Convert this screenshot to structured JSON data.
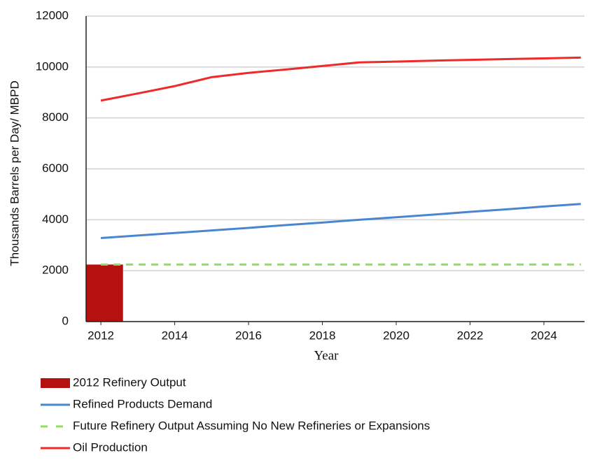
{
  "chart_data": {
    "type": "line",
    "xlabel": "Year",
    "ylabel": "Thousands Barrels per Day/ MBPD",
    "xlim": [
      2011.6,
      2025.1
    ],
    "xticks": [
      2012,
      2014,
      2016,
      2018,
      2020,
      2022,
      2024
    ],
    "ylim": [
      0,
      12000
    ],
    "yticks": [
      0,
      2000,
      4000,
      6000,
      8000,
      10000,
      12000
    ],
    "grid": true,
    "legend": "bottom",
    "series": [
      {
        "name": "2012 Refinery Output",
        "type": "bar",
        "color": "#b5120f",
        "x": [
          2012
        ],
        "values": [
          2240
        ]
      },
      {
        "name": "Refined Products Demand",
        "type": "line",
        "color": "#4a86d0",
        "x": [
          2012,
          2013,
          2014,
          2015,
          2016,
          2017,
          2018,
          2019,
          2020,
          2021,
          2022,
          2023,
          2024,
          2025
        ],
        "values": [
          3280,
          3380,
          3480,
          3580,
          3680,
          3790,
          3890,
          4000,
          4100,
          4200,
          4310,
          4410,
          4520,
          4620
        ]
      },
      {
        "name": "Future Refinery Output Assuming No New Refineries or Expansions",
        "type": "line",
        "dashed": true,
        "color": "#8fe05a",
        "x": [
          2012,
          2025
        ],
        "values": [
          2240,
          2240
        ]
      },
      {
        "name": "Oil Production",
        "type": "line",
        "color": "#ee2a2a",
        "x": [
          2012,
          2013,
          2014,
          2015,
          2016,
          2017,
          2018,
          2019,
          2020,
          2021,
          2022,
          2023,
          2024,
          2025
        ],
        "values": [
          8680,
          8960,
          9250,
          9600,
          9770,
          9900,
          10040,
          10180,
          10210,
          10250,
          10280,
          10310,
          10340,
          10370
        ]
      }
    ]
  }
}
